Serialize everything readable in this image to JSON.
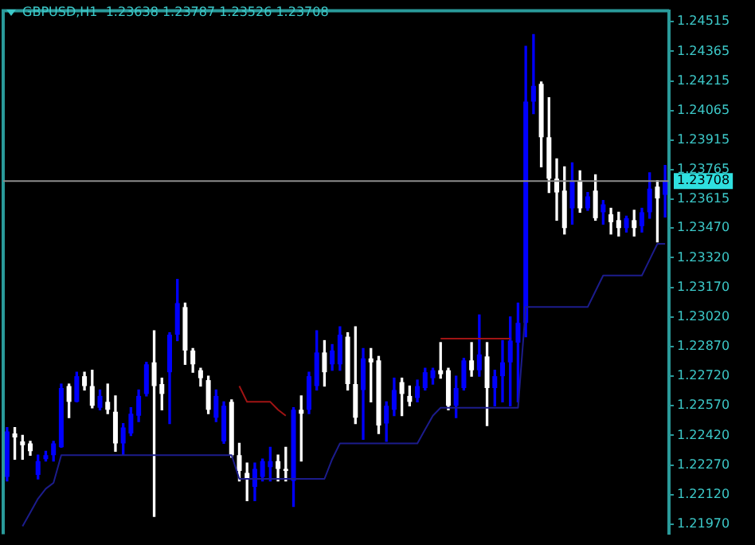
{
  "chart_data": {
    "type": "candlestick",
    "title": "GBPUSD,H1  1.23638 1.23787 1.23526 1.23708",
    "categories": [
      null,
      null,
      null,
      null,
      null,
      null,
      null,
      null,
      null,
      null,
      null,
      null,
      null,
      null,
      null,
      null,
      null,
      null,
      null,
      null,
      null,
      null,
      null,
      null,
      null,
      null,
      null,
      null,
      null,
      null,
      null,
      null,
      null,
      null,
      null,
      null,
      null,
      null,
      null,
      null,
      null,
      null,
      null,
      null,
      null,
      null,
      null,
      null,
      null,
      null,
      null,
      null,
      null,
      null,
      null,
      null,
      null,
      null,
      null,
      null,
      null,
      null,
      null,
      null,
      null,
      null,
      null,
      null,
      null,
      null,
      null,
      null,
      null,
      null,
      null,
      null,
      null,
      null,
      null,
      null,
      null,
      null,
      null,
      null,
      null,
      null
    ],
    "series": [
      {
        "ohlc": [
          [
            1.2221,
            1.2246,
            1.2219,
            1.2244
          ],
          [
            1.2243,
            1.2246,
            1.223,
            1.2241
          ],
          [
            1.2239,
            1.2242,
            1.223,
            1.2237
          ],
          [
            1.2238,
            1.2239,
            1.2232,
            1.2234
          ],
          [
            1.2222,
            1.2232,
            1.222,
            1.2229
          ],
          [
            1.223,
            1.2234,
            1.2229,
            1.2232
          ],
          [
            1.2232,
            1.2239,
            1.2229,
            1.2238
          ],
          [
            1.2236,
            1.2268,
            1.2236,
            1.2266
          ],
          [
            1.2267,
            1.2268,
            1.2251,
            1.2259
          ],
          [
            1.2259,
            1.2274,
            1.2259,
            1.2272
          ],
          [
            1.2272,
            1.2274,
            1.2265,
            1.2267
          ],
          [
            1.2267,
            1.2275,
            1.2256,
            1.2257
          ],
          [
            1.2256,
            1.2265,
            1.2255,
            1.2262
          ],
          [
            1.2259,
            1.2268,
            1.2253,
            1.2255
          ],
          [
            1.2254,
            1.2262,
            1.2234,
            1.2238
          ],
          [
            1.2238,
            1.2248,
            1.2232,
            1.2246
          ],
          [
            1.2243,
            1.2256,
            1.2242,
            1.2253
          ],
          [
            1.2252,
            1.2265,
            1.2249,
            1.2262
          ],
          [
            1.2263,
            1.2279,
            1.2262,
            1.2278
          ],
          [
            1.2279,
            1.2295,
            1.2201,
            1.2267
          ],
          [
            1.2268,
            1.2271,
            1.2255,
            1.2263
          ],
          [
            1.2274,
            1.2294,
            1.2248,
            1.2293
          ],
          [
            1.2293,
            1.2321,
            1.229,
            1.2309
          ],
          [
            1.2307,
            1.2309,
            1.2278,
            1.2285
          ],
          [
            1.2285,
            1.2286,
            1.2274,
            1.2278
          ],
          [
            1.2275,
            1.2276,
            1.2267,
            1.2271
          ],
          [
            1.227,
            1.2272,
            1.2253,
            1.2255
          ],
          [
            1.2251,
            1.2265,
            1.2249,
            1.2262
          ],
          [
            1.2239,
            1.2259,
            1.2238,
            1.2257
          ],
          [
            1.2259,
            1.226,
            1.2231,
            1.2232
          ],
          [
            1.2232,
            1.2238,
            1.2219,
            1.2224
          ],
          [
            1.2223,
            1.2228,
            1.2209,
            1.222
          ],
          [
            1.2216,
            1.2228,
            1.2209,
            1.2225
          ],
          [
            1.2221,
            1.223,
            1.2219,
            1.2229
          ],
          [
            1.2226,
            1.2236,
            1.2219,
            1.2229
          ],
          [
            1.2229,
            1.2232,
            1.2219,
            1.2225
          ],
          [
            1.2225,
            1.2236,
            1.2219,
            1.2224
          ],
          [
            1.2219,
            1.2256,
            1.2206,
            1.2255
          ],
          [
            1.2255,
            1.2262,
            1.2229,
            1.2253
          ],
          [
            1.2255,
            1.2274,
            1.2253,
            1.2272
          ],
          [
            1.2267,
            1.2295,
            1.2265,
            1.2284
          ],
          [
            1.2284,
            1.229,
            1.2267,
            1.2274
          ],
          [
            1.2278,
            1.2288,
            1.2275,
            1.2285
          ],
          [
            1.2278,
            1.2297,
            1.2275,
            1.2293
          ],
          [
            1.2292,
            1.2294,
            1.2265,
            1.2268
          ],
          [
            1.2268,
            1.2297,
            1.2248,
            1.2251
          ],
          [
            1.2265,
            1.2286,
            1.224,
            1.2281
          ],
          [
            1.2281,
            1.2286,
            1.2259,
            1.2279
          ],
          [
            1.228,
            1.2282,
            1.2243,
            1.2247
          ],
          [
            1.2248,
            1.2259,
            1.2239,
            1.2257
          ],
          [
            1.2255,
            1.2271,
            1.2252,
            1.2265
          ],
          [
            1.2269,
            1.2271,
            1.2252,
            1.2263
          ],
          [
            1.2262,
            1.2267,
            1.2257,
            1.2259
          ],
          [
            1.2261,
            1.227,
            1.2259,
            1.2267
          ],
          [
            1.2266,
            1.2276,
            1.2265,
            1.2274
          ],
          [
            1.2271,
            1.2276,
            1.2268,
            1.2275
          ],
          [
            1.2275,
            1.2289,
            1.2271,
            1.2273
          ],
          [
            1.2275,
            1.2276,
            1.2255,
            1.2257
          ],
          [
            1.2257,
            1.2272,
            1.2251,
            1.2266
          ],
          [
            1.2266,
            1.2281,
            1.2265,
            1.228
          ],
          [
            1.228,
            1.2289,
            1.2272,
            1.2275
          ],
          [
            1.2275,
            1.2303,
            1.2272,
            1.2283
          ],
          [
            1.2282,
            1.2289,
            1.2247,
            1.2266
          ],
          [
            1.2266,
            1.2275,
            1.2257,
            1.2272
          ],
          [
            1.2272,
            1.229,
            1.2259,
            1.2279
          ],
          [
            1.2279,
            1.2302,
            1.2257,
            1.229
          ],
          [
            1.2289,
            1.2309,
            1.2259,
            1.2299
          ],
          [
            1.2299,
            1.2439,
            1.2292,
            1.2411
          ],
          [
            1.2411,
            1.2445,
            1.2405,
            1.2419
          ],
          [
            1.242,
            1.2421,
            1.2378,
            1.2393
          ],
          [
            1.2393,
            1.2413,
            1.2365,
            1.2372
          ],
          [
            1.2372,
            1.2382,
            1.2351,
            1.2365
          ],
          [
            1.2366,
            1.2378,
            1.2344,
            1.2347
          ],
          [
            1.2357,
            1.238,
            1.2349,
            1.2371
          ],
          [
            1.2371,
            1.2376,
            1.2355,
            1.2357
          ],
          [
            1.2357,
            1.2365,
            1.2356,
            1.2363
          ],
          [
            1.2366,
            1.2374,
            1.2351,
            1.2352
          ],
          [
            1.2355,
            1.2361,
            1.2349,
            1.2359
          ],
          [
            1.2354,
            1.2357,
            1.2344,
            1.235
          ],
          [
            1.2351,
            1.2355,
            1.2343,
            1.2347
          ],
          [
            1.2347,
            1.2353,
            1.2345,
            1.2352
          ],
          [
            1.2351,
            1.2356,
            1.2343,
            1.2347
          ],
          [
            1.2348,
            1.2357,
            1.2345,
            1.2355
          ],
          [
            1.2355,
            1.2375,
            1.2352,
            1.2367
          ],
          [
            1.2368,
            1.2371,
            1.234,
            1.2362
          ],
          [
            1.23638,
            1.23787,
            1.23526,
            1.23708
          ]
        ],
        "colors": [
          "#0000ff",
          "#ffffff",
          "#ffffff",
          "#ffffff",
          "#0000ff",
          "#0000ff",
          "#0000ff",
          "#0000ff",
          "#ffffff",
          "#0000ff",
          "#ffffff",
          "#ffffff",
          "#0000ff",
          "#ffffff",
          "#ffffff",
          "#0000ff",
          "#0000ff",
          "#0000ff",
          "#0000ff",
          "#ffffff",
          "#ffffff",
          "#0000ff",
          "#0000ff",
          "#ffffff",
          "#ffffff",
          "#ffffff",
          "#ffffff",
          "#0000ff",
          "#0000ff",
          "#ffffff",
          "#ffffff",
          "#ffffff",
          "#0000ff",
          "#0000ff",
          "#0000ff",
          "#ffffff",
          "#ffffff",
          "#0000ff",
          "#ffffff",
          "#0000ff",
          "#0000ff",
          "#ffffff",
          "#0000ff",
          "#0000ff",
          "#ffffff",
          "#ffffff",
          "#0000ff",
          "#ffffff",
          "#ffffff",
          "#0000ff",
          "#0000ff",
          "#ffffff",
          "#ffffff",
          "#0000ff",
          "#0000ff",
          "#0000ff",
          "#ffffff",
          "#ffffff",
          "#0000ff",
          "#0000ff",
          "#ffffff",
          "#0000ff",
          "#ffffff",
          "#0000ff",
          "#0000ff",
          "#0000ff",
          "#0000ff",
          "#0000ff",
          "#0000ff",
          "#ffffff",
          "#ffffff",
          "#ffffff",
          "#ffffff",
          "#0000ff",
          "#ffffff",
          "#0000ff",
          "#ffffff",
          "#0000ff",
          "#ffffff",
          "#ffffff",
          "#0000ff",
          "#ffffff",
          "#0000ff",
          "#0000ff",
          "#ffffff",
          "#0000ff"
        ]
      },
      {
        "type": "line",
        "color": "#1c1c8c",
        "values": [
          null,
          null,
          1.2196,
          1.2203,
          1.221,
          1.2215,
          1.2218,
          1.2232,
          1.2232,
          1.2232,
          1.2232,
          1.2232,
          1.2232,
          1.2232,
          1.2232,
          1.2232,
          1.2232,
          1.2232,
          1.2232,
          1.2232,
          1.2232,
          1.2232,
          1.2232,
          1.2232,
          1.2232,
          1.2232,
          1.2232,
          1.2232,
          1.2232,
          1.2232,
          1.222,
          1.222,
          1.222,
          1.222,
          1.222,
          1.222,
          1.222,
          1.222,
          1.222,
          1.222,
          1.222,
          1.222,
          1.223,
          1.2238,
          1.2238,
          1.2238,
          1.2238,
          1.2238,
          1.2238,
          1.2238,
          1.2238,
          1.2238,
          1.2238,
          1.2238,
          1.2245,
          1.2252,
          1.2256,
          1.2256,
          1.2256,
          1.2256,
          1.2256,
          1.2256,
          1.2256,
          1.2256,
          1.2256,
          1.2256,
          1.2256,
          1.2307,
          1.2307,
          1.2307,
          1.2307,
          1.2307,
          1.2307,
          1.2307,
          1.2307,
          1.2307,
          1.2315,
          1.2323,
          1.2323,
          1.2323,
          1.2323,
          1.2323,
          1.2323,
          1.2331,
          1.2339,
          1.2339
        ]
      },
      {
        "type": "line",
        "color": "#a01414",
        "values": [
          null,
          null,
          null,
          null,
          null,
          null,
          null,
          null,
          null,
          null,
          null,
          null,
          null,
          null,
          null,
          null,
          null,
          null,
          null,
          null,
          null,
          null,
          null,
          null,
          null,
          null,
          null,
          null,
          null,
          null,
          1.2267,
          1.2259,
          1.2259,
          1.2259,
          1.2259,
          1.2255,
          1.2252,
          null,
          null,
          null,
          null,
          null,
          null,
          null,
          null,
          null,
          null,
          null,
          null,
          null,
          null,
          null,
          null,
          null,
          null,
          null,
          1.2291,
          1.2291,
          1.2291,
          1.2291,
          1.2291,
          1.2291,
          1.2291,
          1.2291,
          1.2291,
          1.2291,
          null,
          null,
          null,
          null,
          null,
          null,
          null,
          null,
          null,
          null,
          null,
          null,
          null,
          null,
          null,
          null,
          null,
          null,
          null,
          null
        ]
      }
    ],
    "ylim": [
      1.2192,
      1.2457
    ],
    "yticks": [
      1.24515,
      1.24365,
      1.24215,
      1.24065,
      1.23915,
      1.23765,
      1.23615,
      {
        "value": 1.2347,
        "label": "1.23470"
      },
      {
        "value": 1.2332,
        "label": "1.23320"
      },
      {
        "value": 1.2317,
        "label": "1.23170"
      },
      {
        "value": 1.2302,
        "label": "1.23020"
      },
      {
        "value": 1.2287,
        "label": "1.22870"
      },
      {
        "value": 1.2272,
        "label": "1.22720"
      },
      {
        "value": 1.2257,
        "label": "1.22570"
      },
      {
        "value": 1.2242,
        "label": "1.22420"
      },
      {
        "value": 1.2227,
        "label": "1.22270"
      },
      {
        "value": 1.2212,
        "label": "1.22120"
      },
      {
        "value": 1.2197,
        "label": "1.21970"
      }
    ],
    "ref_lines": [
      {
        "axis": "y",
        "value": 1.23708,
        "label": "1.23708",
        "color": "#8c8c8c"
      }
    ],
    "legend": false,
    "grid": false,
    "tick_labels": "y"
  }
}
